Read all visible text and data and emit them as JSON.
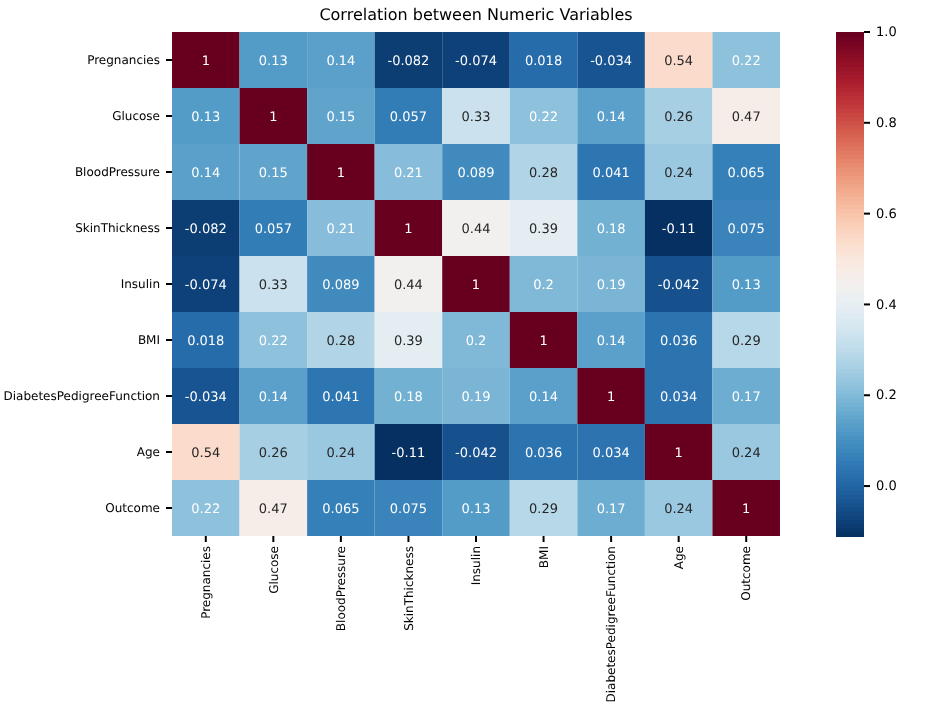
{
  "chart_data": {
    "type": "heatmap",
    "title": "Correlation between Numeric Variables",
    "categories": [
      "Pregnancies",
      "Glucose",
      "BloodPressure",
      "SkinThickness",
      "Insulin",
      "BMI",
      "DiabetesPedigreeFunction",
      "Age",
      "Outcome"
    ],
    "y_categories": [
      "Pregnancies",
      "Glucose",
      "BloodPressure",
      "SkinThickness",
      "Insulin",
      "BMI",
      "DiabetesPedigreeFunction",
      "Age",
      "Outcome"
    ],
    "cells": [
      [
        1,
        0.13,
        0.14,
        -0.082,
        -0.074,
        0.018,
        -0.034,
        0.54,
        0.22
      ],
      [
        0.13,
        1,
        0.15,
        0.057,
        0.33,
        0.22,
        0.14,
        0.26,
        0.47
      ],
      [
        0.14,
        0.15,
        1,
        0.21,
        0.089,
        0.28,
        0.041,
        0.24,
        0.065
      ],
      [
        -0.082,
        0.057,
        0.21,
        1,
        0.44,
        0.39,
        0.18,
        -0.11,
        0.075
      ],
      [
        -0.074,
        0.33,
        0.089,
        0.44,
        1,
        0.2,
        0.19,
        -0.042,
        0.13
      ],
      [
        0.018,
        0.22,
        0.28,
        0.39,
        0.2,
        1,
        0.14,
        0.036,
        0.29
      ],
      [
        -0.034,
        0.14,
        0.041,
        0.18,
        0.19,
        0.14,
        1,
        0.034,
        0.17
      ],
      [
        0.54,
        0.26,
        0.24,
        -0.11,
        -0.042,
        0.036,
        0.034,
        1,
        0.24
      ],
      [
        0.22,
        0.47,
        0.065,
        0.075,
        0.13,
        0.29,
        0.17,
        0.24,
        1
      ]
    ],
    "data_labels": true,
    "clim": [
      -0.11,
      1
    ],
    "cticks": [
      {
        "value": 0,
        "label": "0.0"
      },
      {
        "value": 0.2,
        "label": "0.2"
      },
      {
        "value": 0.4,
        "label": "0.4"
      },
      {
        "value": 0.6,
        "label": "0.6"
      },
      {
        "value": 0.8,
        "label": "0.8"
      },
      {
        "value": 1,
        "label": "1.0"
      }
    ]
  }
}
